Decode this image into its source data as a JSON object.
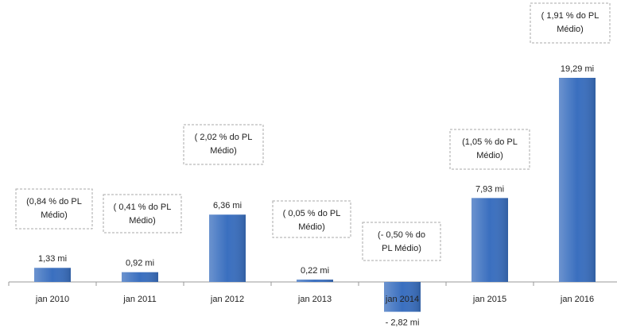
{
  "chart_data": {
    "type": "bar",
    "categories": [
      "jan 2010",
      "jan 2011",
      "jan 2012",
      "jan 2013",
      "jan 2014",
      "jan 2015",
      "jan 2016"
    ],
    "values": [
      1.33,
      0.92,
      6.36,
      0.22,
      -2.82,
      7.93,
      19.29
    ],
    "value_labels": [
      "1,33 mi",
      "0,92 mi",
      "6,36 mi",
      "0,22 mi",
      "- 2,82 mi",
      "7,93 mi",
      "19,29 mi"
    ],
    "annotations": [
      [
        "(0,84 % do PL",
        "Médio)"
      ],
      [
        "( 0,41 % do PL",
        "Médio)"
      ],
      [
        "( 2,02 % do PL",
        "Médio)"
      ],
      [
        "( 0,05 % do PL",
        "Médio)"
      ],
      [
        "(- 0,50 % do",
        "PL Médio)"
      ],
      [
        "(1,05 % do PL",
        "Médio)"
      ],
      [
        "( 1,91 % do PL",
        "Médio)"
      ]
    ],
    "color": "#3a6fbf"
  }
}
